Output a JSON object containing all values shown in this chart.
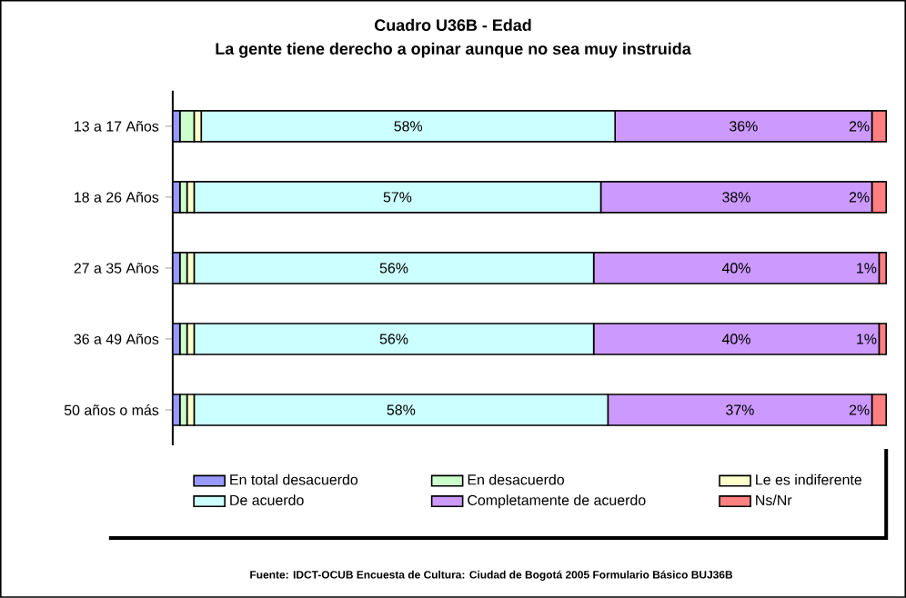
{
  "chart_data": {
    "type": "bar",
    "orientation": "horizontal",
    "stacked": true,
    "title": "Cuadro U36B - Edad",
    "subtitle": "La gente tiene derecho a opinar aunque no sea muy instruida",
    "categories": [
      "13 a 17 Años",
      "18 a 26 Años",
      "27 a 35 Años",
      "36 a 49 Años",
      "50 años o más"
    ],
    "xlim": [
      0,
      100
    ],
    "tick_labels": "y",
    "legend": "bottom",
    "series": [
      {
        "name": "En total desacuerdo",
        "color": "#9999ff",
        "values": [
          1,
          1,
          1,
          1,
          1
        ]
      },
      {
        "name": "En desacuerdo",
        "color": "#ccffcc",
        "values": [
          2,
          1,
          1,
          1,
          1
        ]
      },
      {
        "name": "Le es indiferente",
        "color": "#ffffcc",
        "values": [
          1,
          1,
          1,
          1,
          1
        ]
      },
      {
        "name": "De acuerdo",
        "color": "#ccffff",
        "values": [
          58,
          57,
          56,
          56,
          58
        ],
        "value_labels": [
          "58%",
          "57%",
          "56%",
          "56%",
          "58%"
        ]
      },
      {
        "name": "Completamente de acuerdo",
        "color": "#cc99ff",
        "values": [
          36,
          38,
          40,
          40,
          37
        ],
        "value_labels": [
          "36%",
          "38%",
          "40%",
          "40%",
          "37%"
        ]
      },
      {
        "name": "Ns/Nr",
        "color": "#ff8080",
        "values": [
          2,
          2,
          1,
          1,
          2
        ],
        "value_labels": [
          "2%",
          "2%",
          "1%",
          "1%",
          "2%"
        ]
      }
    ],
    "annotations": [
      "Fuente: IDCT-OCUB Encuesta de Cultura: Ciudad de Bogotá 2005 Formulario Básico BUJ36B"
    ]
  }
}
